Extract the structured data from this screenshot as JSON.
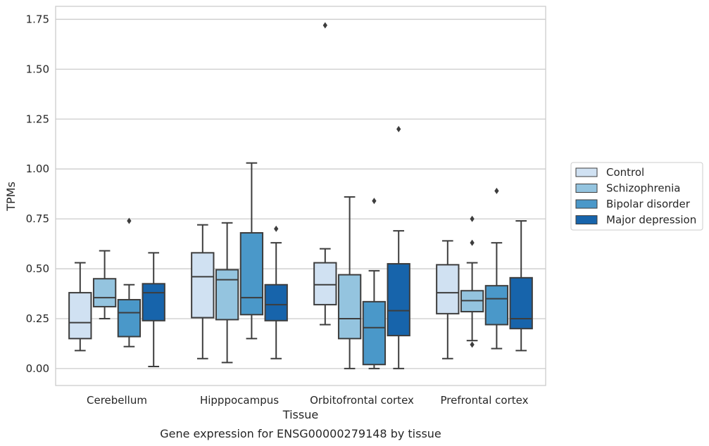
{
  "chart_data": {
    "type": "box",
    "title": "",
    "caption": "Gene expression for ENSG00000279148 by tissue",
    "xlabel": "Tissue",
    "ylabel": "TPMs",
    "categories": [
      "Cerebellum",
      "Hipppocampus",
      "Orbitofrontal cortex",
      "Prefrontal cortex"
    ],
    "ylim": [
      -0.085,
      1.815
    ],
    "yticks": [
      0.0,
      0.25,
      0.5,
      0.75,
      1.0,
      1.25,
      1.5,
      1.75
    ],
    "ytick_labels": [
      "0.00",
      "0.25",
      "0.50",
      "0.75",
      "1.00",
      "1.25",
      "1.50",
      "1.75"
    ],
    "grid": "horizontal",
    "legend_position": "right",
    "series": [
      {
        "name": "Control",
        "color": "#d0e1f2",
        "boxes": [
          {
            "whislo": 0.09,
            "q1": 0.15,
            "med": 0.23,
            "q3": 0.38,
            "whishi": 0.53,
            "fliers": []
          },
          {
            "whislo": 0.05,
            "q1": 0.255,
            "med": 0.46,
            "q3": 0.58,
            "whishi": 0.72,
            "fliers": []
          },
          {
            "whislo": 0.22,
            "q1": 0.32,
            "med": 0.42,
            "q3": 0.53,
            "whishi": 0.6,
            "fliers": [
              1.72
            ]
          },
          {
            "whislo": 0.05,
            "q1": 0.275,
            "med": 0.38,
            "q3": 0.52,
            "whishi": 0.64,
            "fliers": []
          }
        ]
      },
      {
        "name": "Schizophrenia",
        "color": "#94c4df",
        "boxes": [
          {
            "whislo": 0.25,
            "q1": 0.31,
            "med": 0.355,
            "q3": 0.45,
            "whishi": 0.59,
            "fliers": []
          },
          {
            "whislo": 0.03,
            "q1": 0.245,
            "med": 0.445,
            "q3": 0.495,
            "whishi": 0.73,
            "fliers": []
          },
          {
            "whislo": 0.0,
            "q1": 0.15,
            "med": 0.25,
            "q3": 0.47,
            "whishi": 0.86,
            "fliers": []
          },
          {
            "whislo": 0.14,
            "q1": 0.285,
            "med": 0.34,
            "q3": 0.39,
            "whishi": 0.53,
            "fliers": [
              0.12,
              0.63,
              0.75
            ]
          }
        ]
      },
      {
        "name": "Bipolar disorder",
        "color": "#4a98c9",
        "boxes": [
          {
            "whislo": 0.11,
            "q1": 0.16,
            "med": 0.28,
            "q3": 0.345,
            "whishi": 0.42,
            "fliers": [
              0.74
            ]
          },
          {
            "whislo": 0.15,
            "q1": 0.27,
            "med": 0.355,
            "q3": 0.68,
            "whishi": 1.03,
            "fliers": []
          },
          {
            "whislo": 0.0,
            "q1": 0.02,
            "med": 0.205,
            "q3": 0.335,
            "whishi": 0.49,
            "fliers": [
              0.84
            ]
          },
          {
            "whislo": 0.1,
            "q1": 0.22,
            "med": 0.35,
            "q3": 0.415,
            "whishi": 0.63,
            "fliers": [
              0.89
            ]
          }
        ]
      },
      {
        "name": "Major depression",
        "color": "#1764ab",
        "boxes": [
          {
            "whislo": 0.01,
            "q1": 0.24,
            "med": 0.38,
            "q3": 0.425,
            "whishi": 0.58,
            "fliers": []
          },
          {
            "whislo": 0.05,
            "q1": 0.24,
            "med": 0.32,
            "q3": 0.42,
            "whishi": 0.63,
            "fliers": [
              0.7
            ]
          },
          {
            "whislo": 0.0,
            "q1": 0.165,
            "med": 0.29,
            "q3": 0.525,
            "whishi": 0.69,
            "fliers": [
              1.2
            ]
          },
          {
            "whislo": 0.09,
            "q1": 0.2,
            "med": 0.25,
            "q3": 0.455,
            "whishi": 0.74,
            "fliers": []
          }
        ]
      }
    ]
  }
}
